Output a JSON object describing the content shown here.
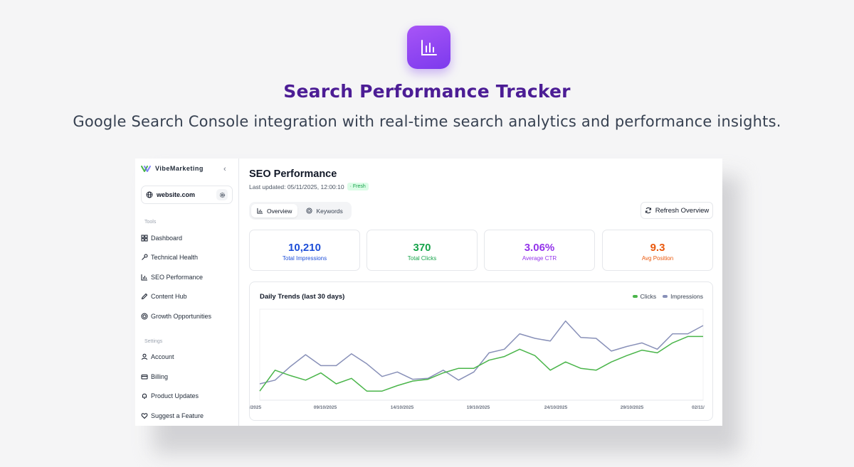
{
  "hero": {
    "title": "Search Performance Tracker",
    "subtitle": "Google Search Console integration with real-time search analytics and performance insights.",
    "icon": "bar-chart-icon",
    "icon_color": "#8b5cf6"
  },
  "sidebar": {
    "brand": "VibeMarketing",
    "site": "website.com",
    "tools_label": "Tools",
    "tools": [
      {
        "label": "Dashboard",
        "icon": "grid-icon"
      },
      {
        "label": "Technical Health",
        "icon": "wrench-icon"
      },
      {
        "label": "SEO Performance",
        "icon": "bar-chart-icon"
      },
      {
        "label": "Content Hub",
        "icon": "pen-icon"
      },
      {
        "label": "Growth Opportunities",
        "icon": "target-icon"
      }
    ],
    "settings_label": "Settings",
    "settings": [
      {
        "label": "Account",
        "icon": "user-icon"
      },
      {
        "label": "Billing",
        "icon": "card-icon"
      },
      {
        "label": "Product Updates",
        "icon": "bell-icon"
      },
      {
        "label": "Suggest a Feature",
        "icon": "heart-icon"
      }
    ]
  },
  "main": {
    "title": "SEO Performance",
    "updated": "Last updated: 05/11/2025, 12:00:10",
    "fresh_badge": "Fresh",
    "tabs": [
      {
        "label": "Overview"
      },
      {
        "label": "Keywords"
      }
    ],
    "refresh_label": "Refresh Overview",
    "stats": [
      {
        "value": "10,210",
        "label": "Total Impressions",
        "color": "#1d4ed8"
      },
      {
        "value": "370",
        "label": "Total Clicks",
        "color": "#16a34a"
      },
      {
        "value": "3.06%",
        "label": "Average CTR",
        "color": "#9333ea"
      },
      {
        "value": "9.3",
        "label": "Avg Position",
        "color": "#ea580c"
      }
    ]
  },
  "chart_data": {
    "type": "line",
    "title": "Daily Trends (last 30 days)",
    "x_tick_labels": [
      "/2025",
      "09/10/2025",
      "14/10/2025",
      "19/10/2025",
      "24/10/2025",
      "29/10/2025",
      "02/11/"
    ],
    "legend_position": "top-right",
    "grid": false,
    "series": [
      {
        "name": "Clicks",
        "color": "#4ab54a",
        "values": [
          10,
          33,
          27,
          22,
          30,
          18,
          24,
          10,
          10,
          16,
          21,
          23,
          30,
          35,
          35,
          44,
          48,
          56,
          49,
          33,
          42,
          35,
          33,
          42,
          49,
          55,
          52,
          63,
          70,
          70
        ]
      },
      {
        "name": "Impressions",
        "color": "#8890b8",
        "values": [
          18,
          22,
          37,
          50,
          38,
          38,
          51,
          40,
          26,
          31,
          23,
          24,
          33,
          22,
          31,
          52,
          56,
          73,
          68,
          65,
          87,
          69,
          68,
          54,
          59,
          63,
          56,
          73,
          73,
          82
        ]
      }
    ]
  }
}
